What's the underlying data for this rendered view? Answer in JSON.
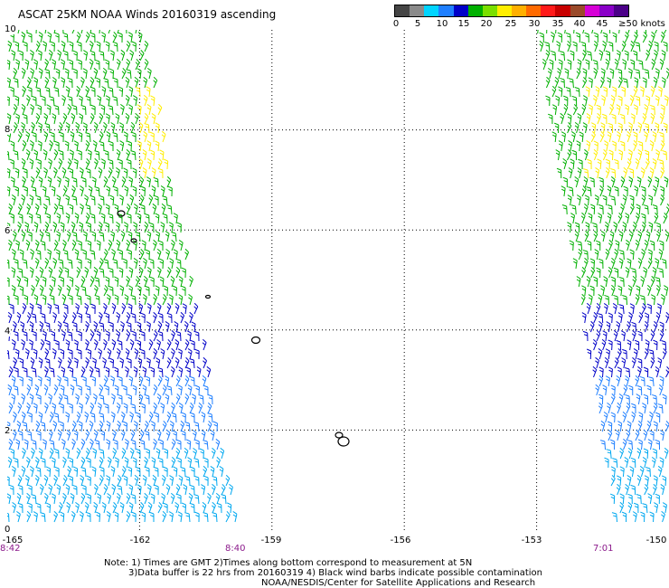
{
  "title": "ASCAT 25KM NOAA Winds 20160319 ascending",
  "legend": {
    "labels": [
      "0",
      "5",
      "10",
      "15",
      "20",
      "25",
      "30",
      "35",
      "40",
      "45",
      "≥50 knots"
    ],
    "colors": [
      "#454545",
      "#8a8a8a",
      "#00d4ff",
      "#1f7fff",
      "#0000c8",
      "#00b000",
      "#7adf00",
      "#ffee00",
      "#ffb000",
      "#ff6a00",
      "#ff1a1a",
      "#c80000",
      "#9a4a2a",
      "#d600d6",
      "#8a00c8",
      "#4b0088"
    ]
  },
  "axes": {
    "lat_labels": [
      "10",
      "8",
      "6",
      "4",
      "2",
      "0"
    ],
    "lon_labels": [
      "-165",
      "-162",
      "-159",
      "-156",
      "-153",
      "-150"
    ]
  },
  "times": {
    "left_start": "8:42",
    "left_end": "8:40",
    "right": "7:01"
  },
  "notes": {
    "line1": "Note: 1) Times are GMT 2)Times along bottom correspond to measurement at 5N",
    "line2": "3)Data buffer is 22 hrs from 20160319 4) Black wind barbs indicate possible contamination",
    "line3": "NOAA/NESDIS/Center for Satellite Applications and Research"
  },
  "map_data": {
    "lon_range": [
      -165,
      -150
    ],
    "lat_range": [
      0,
      10
    ],
    "gridlines": {
      "lon": [
        -162,
        -159,
        -156,
        -153
      ],
      "lat": [
        2,
        4,
        6,
        8
      ]
    },
    "swaths": [
      {
        "name": "left",
        "approx_lon_range": [
          -165,
          -160.5
        ]
      },
      {
        "name": "right",
        "approx_lon_range": [
          -152.8,
          -150
        ]
      }
    ],
    "wind_speed_bands_knots": [
      {
        "lat_range": [
          0,
          3
        ],
        "speed": "10-15",
        "color": "#1f7fff"
      },
      {
        "lat_range": [
          3,
          4.5
        ],
        "speed": "15-20",
        "color": "#0000c8"
      },
      {
        "lat_range": [
          4.5,
          10
        ],
        "speed": "20-25",
        "color": "#00b000"
      },
      {
        "lat_range": [
          7,
          8.8
        ],
        "speed": "25-30",
        "color": "#ffee00"
      }
    ]
  }
}
